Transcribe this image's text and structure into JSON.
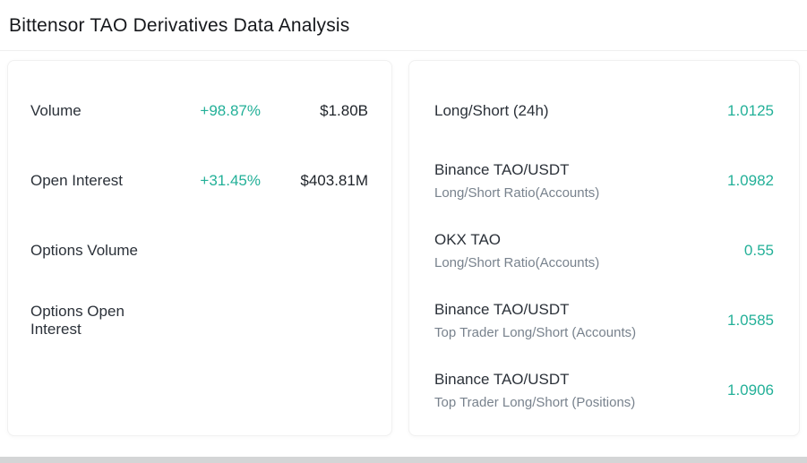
{
  "page": {
    "title": "Bittensor TAO Derivatives Data Analysis"
  },
  "colors": {
    "accent_teal": "#23b098",
    "text_primary": "#1e2329",
    "text_secondary": "#78828d"
  },
  "left_panel": {
    "rows": [
      {
        "label": "Volume",
        "change": "+98.87%",
        "value": "$1.80B"
      },
      {
        "label": "Open Interest",
        "change": "+31.45%",
        "value": "$403.81M"
      },
      {
        "label": "Options Volume",
        "change": "",
        "value": ""
      },
      {
        "label": "Options Open Interest",
        "change": "",
        "value": ""
      }
    ]
  },
  "right_panel": {
    "rows": [
      {
        "label": "Long/Short (24h)",
        "sub": "",
        "value": "1.0125"
      },
      {
        "label": "Binance TAO/USDT",
        "sub": "Long/Short Ratio(Accounts)",
        "value": "1.0982"
      },
      {
        "label": "OKX TAO",
        "sub": "Long/Short Ratio(Accounts)",
        "value": "0.55"
      },
      {
        "label": "Binance TAO/USDT",
        "sub": "Top Trader Long/Short (Accounts)",
        "value": "1.0585"
      },
      {
        "label": "Binance TAO/USDT",
        "sub": "Top Trader Long/Short (Positions)",
        "value": "1.0906"
      }
    ]
  }
}
